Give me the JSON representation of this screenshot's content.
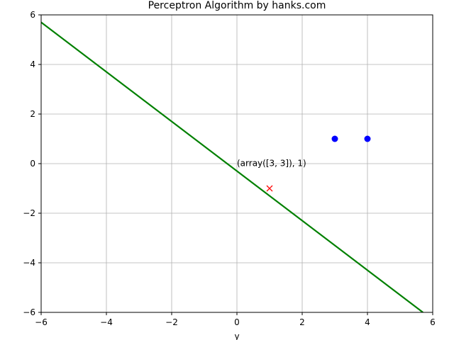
{
  "chart_data": {
    "type": "scatter",
    "title": "Perceptron Algorithm by hanks.com",
    "xlabel": "y",
    "ylabel": "",
    "xlim": [
      -6,
      6
    ],
    "ylim": [
      -6,
      6
    ],
    "xticks": [
      -6,
      -4,
      -2,
      0,
      2,
      4,
      6
    ],
    "yticks": [
      -6,
      -4,
      -2,
      0,
      2,
      4,
      6
    ],
    "grid": true,
    "series": [
      {
        "marker": "circle",
        "color": "#0000ff",
        "points": [
          [
            3,
            1
          ],
          [
            4,
            1
          ]
        ]
      },
      {
        "marker": "x",
        "color": "#ff0000",
        "points": [
          [
            1,
            -1
          ]
        ]
      }
    ],
    "line": {
      "color": "#008000",
      "x": [
        -6,
        5.7
      ],
      "y": [
        5.7,
        -6
      ]
    },
    "annotations": [
      {
        "text": "(array([3, 3]), 1)",
        "x": 0,
        "y": -0.1
      }
    ]
  }
}
